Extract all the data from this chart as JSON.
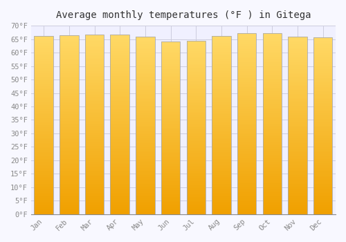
{
  "title": "Average monthly temperatures (°F ) in Gitega",
  "months": [
    "Jan",
    "Feb",
    "Mar",
    "Apr",
    "May",
    "Jun",
    "Jul",
    "Aug",
    "Sep",
    "Oct",
    "Nov",
    "Dec"
  ],
  "temperatures": [
    66.2,
    66.4,
    66.7,
    66.6,
    65.8,
    64.2,
    64.4,
    66.2,
    67.3,
    67.1,
    65.8,
    65.7
  ],
  "bar_color_top": "#FFD966",
  "bar_color_bottom": "#F0A000",
  "bar_edge_color": "#AAAAAA",
  "background_color": "#F8F8FF",
  "plot_bg_color": "#F0F0FF",
  "ylim": [
    0,
    70
  ],
  "yticks": [
    0,
    5,
    10,
    15,
    20,
    25,
    30,
    35,
    40,
    45,
    50,
    55,
    60,
    65,
    70
  ],
  "ytick_labels": [
    "0°F",
    "5°F",
    "10°F",
    "15°F",
    "20°F",
    "25°F",
    "30°F",
    "35°F",
    "40°F",
    "45°F",
    "50°F",
    "55°F",
    "60°F",
    "65°F",
    "70°F"
  ],
  "grid_color": "#CCCCDD",
  "title_fontsize": 10,
  "tick_fontsize": 7.5,
  "tick_color": "#888888",
  "bar_width": 0.75,
  "gradient_steps": 100
}
